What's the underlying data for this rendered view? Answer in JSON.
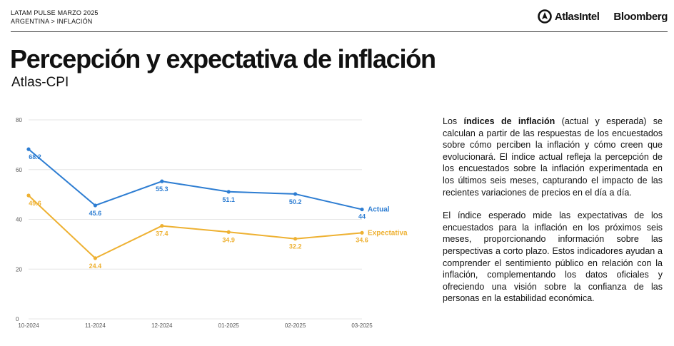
{
  "header": {
    "breadcrumb_line1": "LATAM PULSE MARZO 2025",
    "breadcrumb_line2": "ARGENTINA > INFLACIÓN",
    "atlas_logo_text": "AtlasIntel",
    "bloomberg_logo_text": "Bloomberg"
  },
  "title": "Percepción y expectativa de inflación",
  "subtitle": "Atlas-CPI",
  "description": {
    "p1_pre": "Los ",
    "p1_bold": "índices de inflación",
    "p1_post": " (actual y esperada) se calculan a partir de las respuestas de los encuestados sobre cómo perciben la inflación y cómo creen que evolucionará. El índice actual refleja la percepción de los encuestados sobre la inflación experimentada en los últimos seis meses, capturando el impacto de las recientes variaciones de precios en el día a día.",
    "p2": "El índice esperado mide las expectativas de los encuestados para la inflación en los próximos seis meses, proporcionando información sobre las perspectivas a corto plazo. Estos indicadores ayudan a comprender el sentimiento público en relación con la inflación, complementando los datos oficiales y ofreciendo una visión sobre la confianza de las personas en la estabilidad económica."
  },
  "chart_data": {
    "type": "line",
    "categories": [
      "10-2024",
      "11-2024",
      "12-2024",
      "01-2025",
      "02-2025",
      "03-2025"
    ],
    "ylim": [
      0,
      80
    ],
    "yticks": [
      0,
      20,
      40,
      60,
      80
    ],
    "grid": true,
    "series": [
      {
        "name": "Actual",
        "color": "#2d7dd2",
        "values": [
          68.2,
          45.6,
          55.3,
          51.1,
          50.2,
          44
        ],
        "labels": [
          "68.2",
          "45.6",
          "55.3",
          "51.1",
          "50.2",
          "44"
        ]
      },
      {
        "name": "Expectativa",
        "color": "#eeb132",
        "values": [
          49.6,
          24.4,
          37.4,
          34.9,
          32.2,
          34.6
        ],
        "labels": [
          "49.6",
          "24.4",
          "37.4",
          "34.9",
          "32.2",
          "34.6"
        ]
      }
    ]
  }
}
